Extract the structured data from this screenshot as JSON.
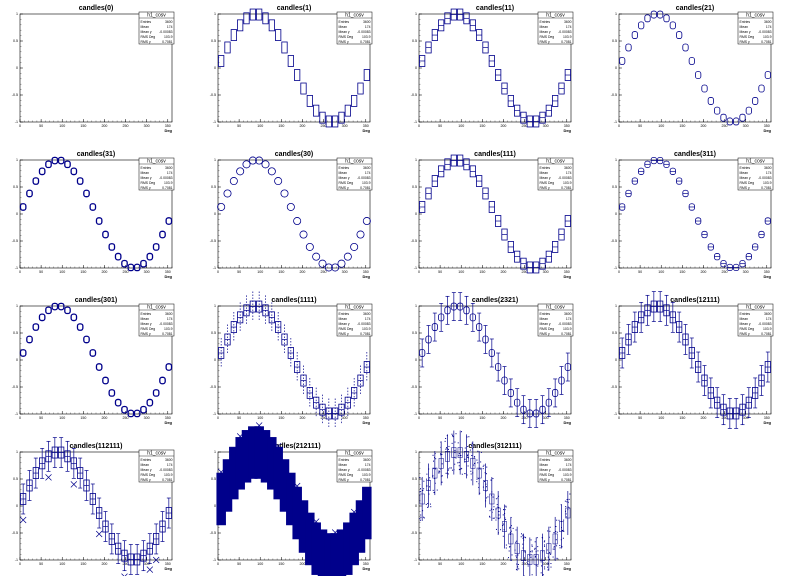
{
  "chart_data": {
    "type": "candle",
    "x_unit": "Deg",
    "x_ticks": [
      "0",
      "50",
      "100",
      "150",
      "200",
      "250",
      "300",
      "350"
    ],
    "y_ticks": [
      "1",
      "0.5",
      "0",
      "-0.5",
      "-1"
    ],
    "xlim": [
      0,
      360
    ],
    "ylim": [
      -1,
      1
    ],
    "x_centers": [
      7.5,
      22.5,
      37.5,
      52.5,
      67.5,
      82.5,
      97.5,
      112.5,
      127.5,
      142.5,
      157.5,
      172.5,
      187.5,
      202.5,
      217.5,
      232.5,
      247.5,
      262.5,
      277.5,
      292.5,
      307.5,
      322.5,
      337.5,
      352.5
    ],
    "medians": [
      0.13,
      0.38,
      0.61,
      0.79,
      0.92,
      0.99,
      0.99,
      0.92,
      0.79,
      0.61,
      0.38,
      0.13,
      -0.13,
      -0.38,
      -0.61,
      -0.79,
      -0.92,
      -0.99,
      -0.99,
      -0.92,
      -0.79,
      -0.61,
      -0.38,
      -0.13
    ],
    "stats_box": {
      "title": "h1_cosv",
      "rows": [
        {
          "label": "Entries",
          "value": "3600"
        },
        {
          "label": "Mean",
          "value": "174"
        },
        {
          "label": "Mean y",
          "value": "-0.00083"
        },
        {
          "label": "RMS Deg",
          "value": "103.9"
        },
        {
          "label": "RMS y",
          "value": "0.7081"
        }
      ]
    },
    "panels": [
      {
        "title": "candles(0)",
        "option": 0
      },
      {
        "title": "candles(1)",
        "option": 1
      },
      {
        "title": "candles(11)",
        "option": 11
      },
      {
        "title": "candles(21)",
        "option": 21
      },
      {
        "title": "candles(31)",
        "option": 31
      },
      {
        "title": "candles(30)",
        "option": 30
      },
      {
        "title": "candles(111)",
        "option": 111
      },
      {
        "title": "candles(311)",
        "option": 311
      },
      {
        "title": "candles(301)",
        "option": 301
      },
      {
        "title": "candles(1111)",
        "option": 1111
      },
      {
        "title": "candles(2321)",
        "option": 2321
      },
      {
        "title": "candles(12111)",
        "option": 12111
      },
      {
        "title": "candles(112111)",
        "option": 112111
      },
      {
        "title": "candles(212111)",
        "option": 212111
      },
      {
        "title": "candles(312111)",
        "option": 312111
      }
    ],
    "colors": {
      "primary": "#00008b",
      "axis": "#000000",
      "background": "#ffffff"
    }
  }
}
